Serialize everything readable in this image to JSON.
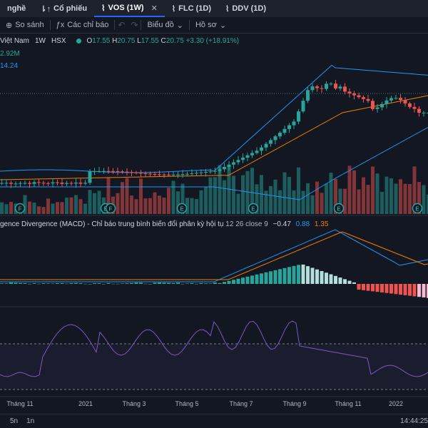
{
  "tabs": [
    {
      "label": "nghề",
      "icon": "chart-icon",
      "active": false
    },
    {
      "label": "Cổ phiếu",
      "icon": "stocks-icon",
      "active": false
    },
    {
      "label": "VOS (1W)",
      "icon": "chart-icon",
      "active": true
    },
    {
      "label": "FLC (1D)",
      "icon": "chart-icon",
      "active": false
    },
    {
      "label": "DDV (1D)",
      "icon": "chart-icon",
      "active": false
    }
  ],
  "toolbar": {
    "compare": "So sánh",
    "indicators": "Các chỉ báo",
    "chart_type": "Biểu đồ",
    "profile": "Hồ sơ"
  },
  "symbol": {
    "name": "Việt Nam",
    "interval": "1W",
    "exchange": "HSX",
    "open_label": "O",
    "open": "17.55",
    "high_label": "H",
    "high": "20.75",
    "low_label": "L",
    "low": "17.55",
    "close_label": "C",
    "close": "20.75",
    "change": "+3.30 (+18.91%)"
  },
  "volume_value": "2.92M",
  "ma_value": "14.24",
  "macd": {
    "title": "gence Divergence (MACD) - Chỉ báo trung bình biến đổi phân kỳ hội tụ",
    "params": "12 26 close 9",
    "hist": "−0.47",
    "macd_value": "0.88",
    "signal_value": "1.35"
  },
  "markers": {
    "earnings": "E",
    "fundamentals": "F"
  },
  "time_axis": [
    "Tháng 11",
    "2021",
    "Tháng 3",
    "Tháng 5",
    "Tháng 7",
    "Tháng 9",
    "Tháng 11",
    "2022"
  ],
  "bottombar": {
    "range1": "5n",
    "range2": "1n",
    "time": "14:44:25"
  },
  "colors": {
    "up": "#26a69a",
    "down": "#ef5350",
    "macd_line": "#2196f3",
    "signal_line": "#f57c00",
    "rsi_line": "#7e57c2",
    "bb_line": "#2196f3",
    "ma_line": "#f57c00"
  }
}
